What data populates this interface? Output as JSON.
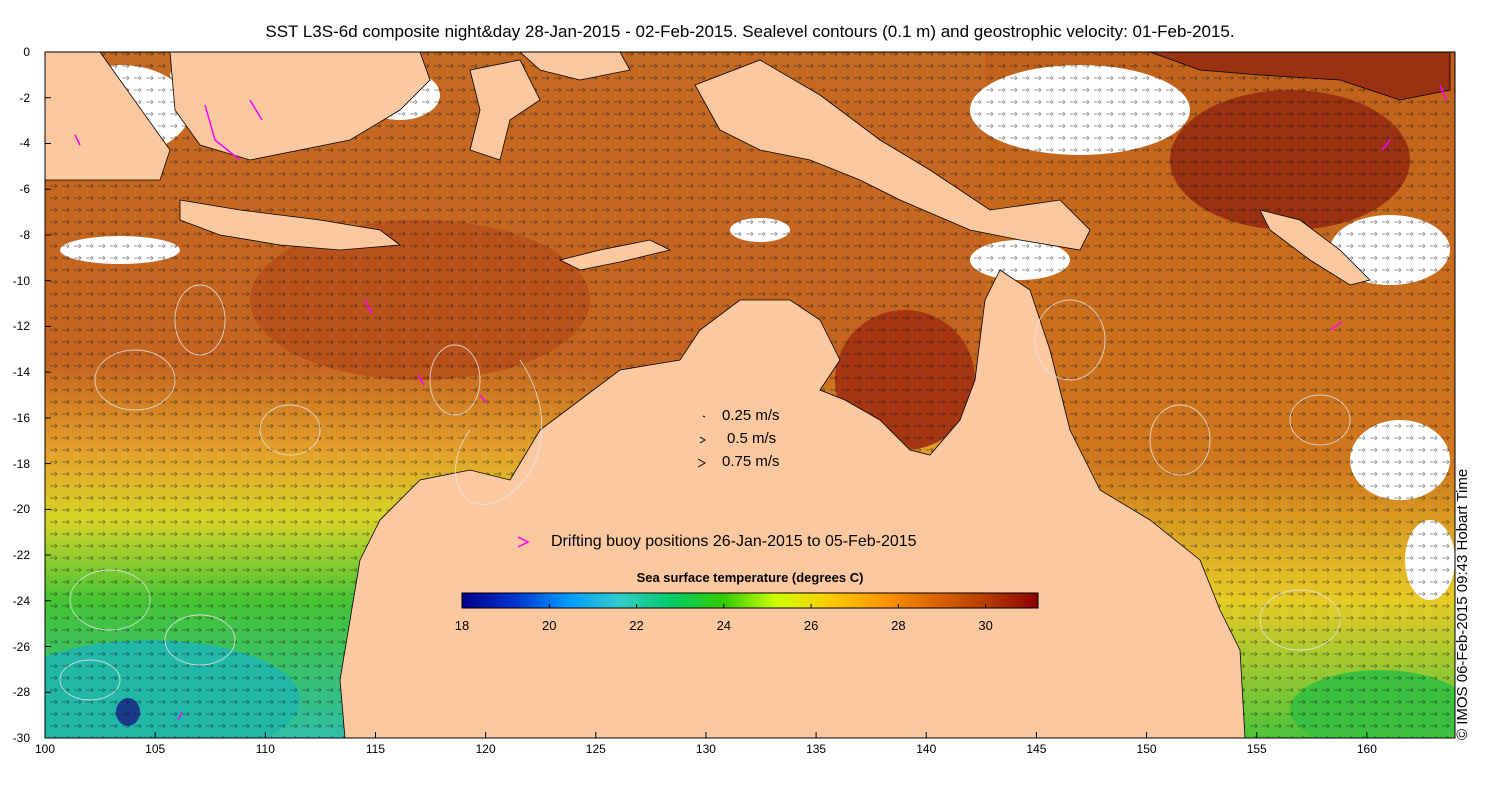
{
  "title": "SST L3S-6d composite night&day 28-Jan-2015 - 02-Feb-2015. Sealevel contours (0.1 m) and geostrophic velocity: 01-Feb-2015.",
  "credit": "© IMOS 06-Feb-2015 09:43 Hobart Time",
  "axes": {
    "x_ticks": [
      "100",
      "105",
      "110",
      "115",
      "120",
      "125",
      "130",
      "135",
      "140",
      "145",
      "150",
      "155",
      "160"
    ],
    "y_ticks": [
      "0",
      "-2",
      "-4",
      "-6",
      "-8",
      "-10",
      "-12",
      "-14",
      "-16",
      "-18",
      "-20",
      "-22",
      "-24",
      "-26",
      "-28",
      "-30"
    ],
    "lon_range": [
      100,
      164
    ],
    "lat_range": [
      -30,
      0
    ]
  },
  "velocity_legend": [
    {
      "label": "0.25 m/s",
      "arrow": "·"
    },
    {
      "label": "0.5 m/s",
      "arrow": ">"
    },
    {
      "label": "0.75 m/s",
      "arrow": ">"
    }
  ],
  "buoy_legend": {
    "marker": ">",
    "label": "Drifting buoy positions 26-Jan-2015 to 05-Feb-2015",
    "color": "#ff00ff"
  },
  "colorbar": {
    "title": "Sea surface temperature (degrees C)",
    "ticks": [
      "18",
      "20",
      "22",
      "24",
      "26",
      "28",
      "30"
    ],
    "range": [
      18,
      31.2
    ],
    "colors": [
      "#00008b",
      "#0033cc",
      "#0099ff",
      "#33cccc",
      "#00cc66",
      "#33cc00",
      "#ccff00",
      "#ffcc00",
      "#ff9900",
      "#dd6600",
      "#b83d00",
      "#8b0000"
    ]
  },
  "colors": {
    "land": "#fcc8a0",
    "warm_sea": "#c0601a",
    "hot_sea": "#a23a14",
    "mid_sea": "#e09a30",
    "yellow_sea": "#ddd020",
    "green_sea": "#40c030",
    "cool_sea": "#30c0a0",
    "cloud": "#ffffff",
    "buoy": "#ff00ff"
  }
}
